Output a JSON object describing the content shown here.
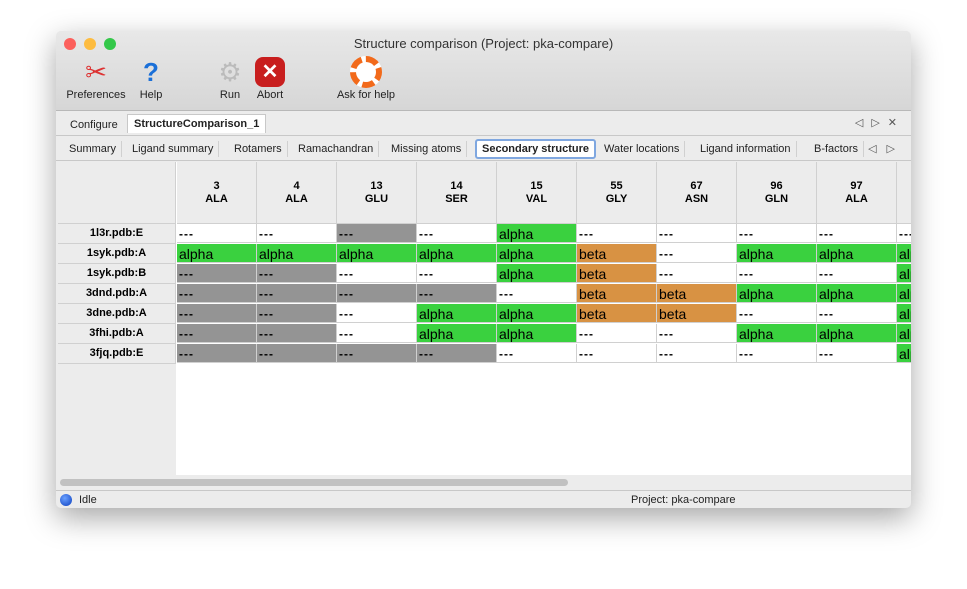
{
  "window": {
    "title": "Structure comparison (Project: pka-compare)"
  },
  "toolbar": [
    {
      "label": "Preferences",
      "icon": "tools-icon"
    },
    {
      "label": "Help",
      "icon": "help-icon"
    },
    {
      "label": "Run",
      "icon": "gear-icon"
    },
    {
      "label": "Abort",
      "icon": "abort-icon"
    },
    {
      "label": "Ask for help",
      "icon": "lifebuoy-icon"
    }
  ],
  "top_tabs": [
    "Configure",
    "StructureComparison_1"
  ],
  "sub_tabs": [
    "Summary",
    "Ligand summary",
    "Rotamers",
    "Ramachandran",
    "Missing atoms",
    "Secondary structure",
    "Water locations",
    "Ligand information",
    "B-factors"
  ],
  "colors": {
    "alpha": "#3ad13f",
    "beta": "#d89243",
    "missing": "#949494",
    "none": "#ffffff"
  },
  "table": {
    "columns": [
      {
        "num": "3",
        "res": "ALA"
      },
      {
        "num": "4",
        "res": "ALA"
      },
      {
        "num": "13",
        "res": "GLU"
      },
      {
        "num": "14",
        "res": "SER"
      },
      {
        "num": "15",
        "res": "VAL"
      },
      {
        "num": "55",
        "res": "GLY"
      },
      {
        "num": "67",
        "res": "ASN"
      },
      {
        "num": "96",
        "res": "GLN"
      },
      {
        "num": "97",
        "res": "ALA"
      },
      {
        "num": "",
        "res": ""
      }
    ],
    "rows": [
      {
        "label": "1l3r.pdb:E",
        "cells": [
          "n",
          "n",
          "m",
          "n",
          "a",
          "n",
          "n",
          "n",
          "n",
          "n"
        ]
      },
      {
        "label": "1syk.pdb:A",
        "cells": [
          "a",
          "a",
          "a",
          "a",
          "a",
          "b",
          "n",
          "a",
          "a",
          "a"
        ]
      },
      {
        "label": "1syk.pdb:B",
        "cells": [
          "m",
          "m",
          "n",
          "n",
          "a",
          "b",
          "n",
          "n",
          "n",
          "a"
        ]
      },
      {
        "label": "3dnd.pdb:A",
        "cells": [
          "m",
          "m",
          "m",
          "m",
          "n",
          "b",
          "b",
          "a",
          "a",
          "a"
        ]
      },
      {
        "label": "3dne.pdb:A",
        "cells": [
          "m",
          "m",
          "n",
          "a",
          "a",
          "b",
          "b",
          "n",
          "n",
          "a"
        ]
      },
      {
        "label": "3fhi.pdb:A",
        "cells": [
          "m",
          "m",
          "n",
          "a",
          "a",
          "n",
          "n",
          "a",
          "a",
          "a"
        ]
      },
      {
        "label": "3fjq.pdb:E",
        "cells": [
          "m",
          "m",
          "m",
          "m",
          "n",
          "n",
          "n",
          "n",
          "n",
          "a"
        ]
      }
    ],
    "values": {
      "a": "alpha",
      "b": "beta",
      "n": "---",
      "m": "---"
    }
  },
  "status": {
    "state": "Idle",
    "project": "Project: pka-compare"
  }
}
